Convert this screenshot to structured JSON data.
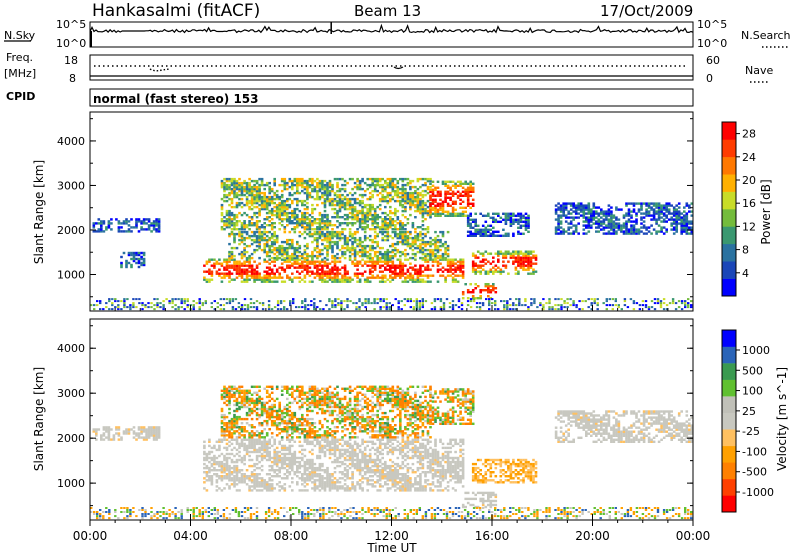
{
  "header": {
    "station": "Hankasalmi (fitACF)",
    "beam": "Beam 13",
    "date": "17/Oct/2009"
  },
  "noise_panel": {
    "left_label": "N.Sky",
    "right_label": "N.Search",
    "left_ticks": [
      "10^5",
      "10^0"
    ],
    "right_ticks": [
      "10^5",
      "10^0"
    ]
  },
  "freq_panel": {
    "left_label": "Freq.",
    "left_unit": "[MHz]",
    "left_ticks": [
      "18",
      "8"
    ],
    "right_label": "Nave",
    "right_ticks": [
      "60",
      "0"
    ]
  },
  "cpid": {
    "label": "CPID",
    "text": "normal (fast stereo) 153"
  },
  "chart_data": [
    {
      "type": "heatmap",
      "title": "Power",
      "xlabel": "Time UT",
      "ylabel": "Slant Range [km]",
      "x_ticks": [
        "00:00",
        "04:00",
        "08:00",
        "12:00",
        "16:00",
        "20:00",
        "00:00"
      ],
      "xlim_hours": [
        0,
        24
      ],
      "y_ticks": [
        "4000",
        "3000",
        "2000",
        "1000"
      ],
      "ylim": [
        180,
        4650
      ],
      "colorbar": {
        "label": "Power [dB]",
        "ticks": [
          "28",
          "24",
          "20",
          "16",
          "12",
          "8",
          "4"
        ],
        "range": [
          0,
          30
        ],
        "colors": [
          "#0000ff",
          "#1a46b8",
          "#2a72a0",
          "#3a9870",
          "#74bc3c",
          "#c8dc28",
          "#ffb000",
          "#ff7800",
          "#ff3c00",
          "#ff0000"
        ]
      },
      "regions": [
        {
          "t0": 0.1,
          "t1": 2.8,
          "r0": 1950,
          "r1": 2250,
          "level": "low"
        },
        {
          "t0": 1.2,
          "t1": 2.2,
          "r0": 1150,
          "r1": 1500,
          "level": "low"
        },
        {
          "t0": 4.5,
          "t1": 14.8,
          "r0": 820,
          "r1": 1350,
          "level": "high"
        },
        {
          "t0": 5.5,
          "t1": 14.2,
          "r0": 1350,
          "r1": 1950,
          "level": "mid"
        },
        {
          "t0": 5.2,
          "t1": 13.5,
          "r0": 2000,
          "r1": 3150,
          "level": "mid"
        },
        {
          "t0": 13.5,
          "t1": 15.2,
          "r0": 2300,
          "r1": 3100,
          "level": "high"
        },
        {
          "t0": 15.2,
          "t1": 17.8,
          "r0": 1000,
          "r1": 1500,
          "level": "high"
        },
        {
          "t0": 14.8,
          "t1": 16.2,
          "r0": 450,
          "r1": 800,
          "level": "high"
        },
        {
          "t0": 15.0,
          "t1": 17.5,
          "r0": 1850,
          "r1": 2350,
          "level": "low"
        },
        {
          "t0": 18.5,
          "t1": 24.0,
          "r0": 1900,
          "r1": 2600,
          "level": "low"
        }
      ]
    },
    {
      "type": "heatmap",
      "title": "Velocity",
      "xlabel": "Time UT",
      "ylabel": "Slant Range [km]",
      "x_ticks": [
        "00:00",
        "04:00",
        "08:00",
        "12:00",
        "16:00",
        "20:00",
        "00:00"
      ],
      "xlim_hours": [
        0,
        24
      ],
      "y_ticks": [
        "4000",
        "3000",
        "2000",
        "1000"
      ],
      "ylim": [
        180,
        4650
      ],
      "colorbar": {
        "label": "Velocity [m s^-1]",
        "ticks": [
          "1000",
          "500",
          "100",
          "25",
          "-25",
          "-100",
          "-500",
          "-1000"
        ],
        "range": [
          -1200,
          1200
        ],
        "colors": [
          "#ff0000",
          "#ff4000",
          "#ff8000",
          "#ffa000",
          "#ffc060",
          "#c8c8c0",
          "#c0c0b8",
          "#60c030",
          "#3a9a50",
          "#2a64b8",
          "#0000ff"
        ]
      },
      "regions": [
        {
          "t0": 0.1,
          "t1": 2.8,
          "r0": 1950,
          "r1": 2250,
          "level": "ground"
        },
        {
          "t0": 4.5,
          "t1": 14.8,
          "r0": 820,
          "r1": 1950,
          "level": "ground"
        },
        {
          "t0": 5.2,
          "t1": 13.5,
          "r0": 2000,
          "r1": 3150,
          "level": "mixed"
        },
        {
          "t0": 13.5,
          "t1": 15.2,
          "r0": 2300,
          "r1": 3100,
          "level": "mixed"
        },
        {
          "t0": 15.2,
          "t1": 17.8,
          "r0": 1000,
          "r1": 1500,
          "level": "negative"
        },
        {
          "t0": 14.8,
          "t1": 16.2,
          "r0": 450,
          "r1": 800,
          "level": "ground"
        },
        {
          "t0": 18.5,
          "t1": 24.0,
          "r0": 1900,
          "r1": 2600,
          "level": "ground"
        }
      ]
    }
  ]
}
